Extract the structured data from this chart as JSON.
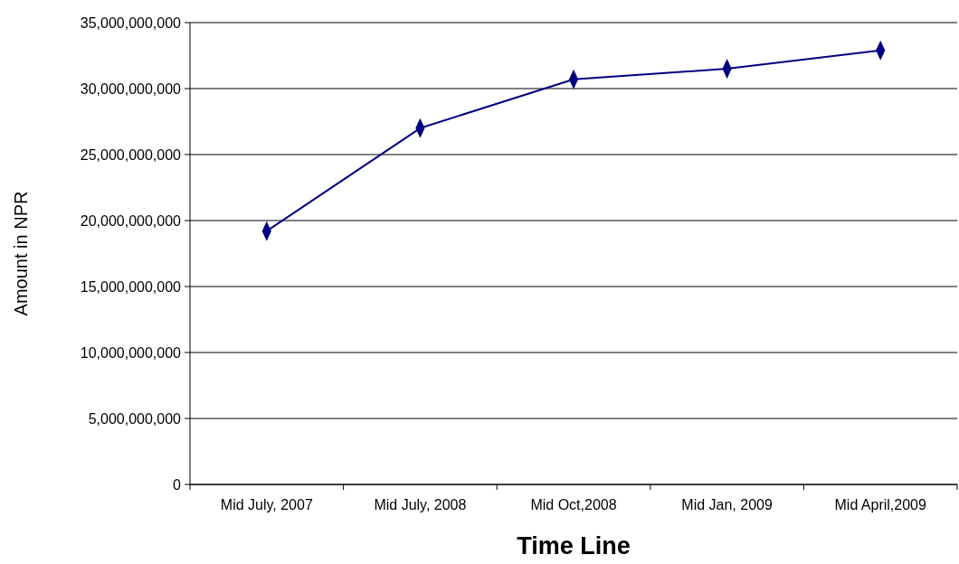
{
  "chart_data": {
    "type": "line",
    "xlabel": "Time Line",
    "ylabel": "Amount in NPR",
    "categories": [
      "Mid July, 2007",
      "Mid July, 2008",
      "Mid Oct,2008",
      "Mid Jan, 2009",
      "Mid April,2009"
    ],
    "series": [
      {
        "color": "#000080",
        "values": [
          19200000000,
          27000000000,
          30700000000,
          31500000000,
          32900000000
        ]
      }
    ],
    "ylim": [
      0,
      35000000000
    ],
    "yticks": [
      {
        "value": 0,
        "label": "0"
      },
      {
        "value": 5000000000,
        "label": "5,000,000,000"
      },
      {
        "value": 10000000000,
        "label": "10,000,000,000"
      },
      {
        "value": 15000000000,
        "label": "15,000,000,000"
      },
      {
        "value": 20000000000,
        "label": "20,000,000,000"
      },
      {
        "value": 25000000000,
        "label": "25,000,000,000"
      },
      {
        "value": 30000000000,
        "label": "30,000,000,000"
      },
      {
        "value": 35000000000,
        "label": "35,000,000,000"
      }
    ],
    "grid": "y",
    "marker": "diamond",
    "line_style": "solid"
  }
}
